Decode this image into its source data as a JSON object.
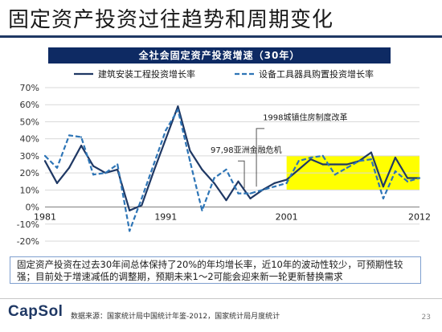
{
  "page": {
    "title": "固定资产投资过往趋势和周期变化",
    "banner": "全社会固定资产投资增速（30年）",
    "summary": "固定资产投资在过去30年间总体保持了20%的年均增长率，近10年的波动性较少，可预期性较强；目前处于增速减低的调整期，预期未来1～2可能会迎来新一轮更新替换需求",
    "logo": "CapSol",
    "source": "数据来源：国家统计局中国统计年鉴-2012，国家统计局月度统计",
    "page_number": "23"
  },
  "colors": {
    "title_rule": "#1f3864",
    "banner_bg": "#0e2a63",
    "series1": "#1f3864",
    "series2": "#2e75b6",
    "highlight": "#ffff00"
  },
  "chart_data": {
    "type": "line",
    "title": "",
    "xlabel": "",
    "ylabel": "",
    "ylim": [
      -20,
      70
    ],
    "yticks": [
      "-20%",
      "-10%",
      "0%",
      "10%",
      "20%",
      "30%",
      "40%",
      "50%",
      "60%",
      "70%"
    ],
    "xticks": [
      {
        "label": "1981",
        "year": 1981
      },
      {
        "label": "1991",
        "year": 1991
      },
      {
        "label": "2001",
        "year": 2001
      },
      {
        "label": "2012",
        "year": 2012
      }
    ],
    "grid": true,
    "legend": "top",
    "x": [
      1981,
      1982,
      1983,
      1984,
      1985,
      1986,
      1987,
      1988,
      1989,
      1990,
      1991,
      1992,
      1993,
      1994,
      1995,
      1996,
      1997,
      1998,
      1999,
      2000,
      2001,
      2002,
      2003,
      2004,
      2005,
      2006,
      2007,
      2008,
      2009,
      2010,
      2011,
      2012
    ],
    "series": [
      {
        "name": "建筑安装工程投资增长率",
        "style": "solid",
        "values": [
          27,
          14,
          23,
          36,
          24,
          20,
          22,
          -2,
          1,
          21,
          40,
          59,
          33,
          22,
          14,
          4,
          15,
          5,
          10,
          14,
          16,
          22,
          28,
          25,
          25,
          25,
          27,
          32,
          12,
          29,
          17,
          17
        ]
      },
      {
        "name": "设备工具器具购置投资增长率",
        "style": "dashed",
        "values": [
          30,
          23,
          42,
          41,
          19,
          20,
          25,
          -14,
          5,
          25,
          45,
          57,
          27,
          -2,
          17,
          22,
          8,
          8,
          10,
          12,
          14,
          27,
          29,
          30,
          19,
          23,
          27,
          28,
          5,
          21,
          15,
          17
        ]
      }
    ],
    "highlight_band": {
      "x_from": 2001,
      "x_to": 2012,
      "y_from": 10,
      "y_to": 30
    },
    "annotations": [
      {
        "text": "97,98亚洲金融危机",
        "x": 1997.5,
        "y": 11
      },
      {
        "text": "1998城镇住房制度改革",
        "x": 1998.5,
        "y": 12
      }
    ]
  }
}
